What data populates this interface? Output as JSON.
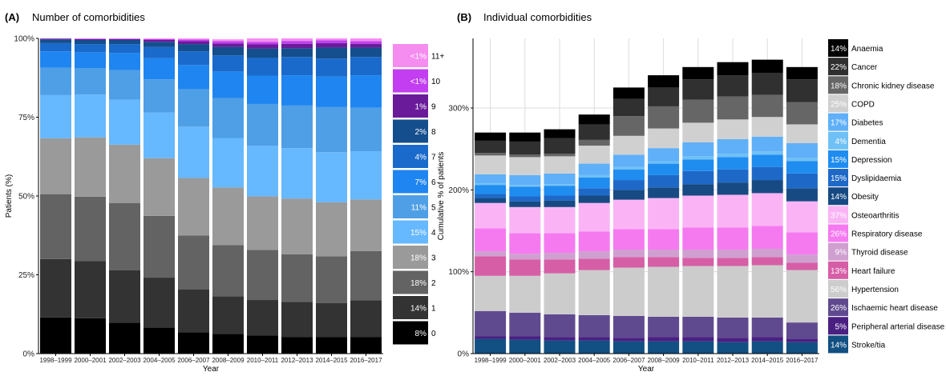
{
  "panels": [
    {
      "tag": "(A)",
      "title": "Number of comorbidities"
    },
    {
      "tag": "(B)",
      "title": "Individual comorbidities"
    }
  ],
  "chart_data": [
    {
      "type": "bar",
      "stacked": true,
      "title": "Number of comorbidities",
      "xlabel": "Year",
      "ylabel": "Patients (%)",
      "ylim": [
        0,
        100
      ],
      "yticks": [
        "0%",
        "25%",
        "50%",
        "75%",
        "100%"
      ],
      "grid": false,
      "legend_position": "right",
      "categories": [
        "1998–1999",
        "2000–2001",
        "2002–2003",
        "2004–2005",
        "2006–2007",
        "2008–2009",
        "2010–2011",
        "2012–2013",
        "2014–2015",
        "2016–2017"
      ],
      "series": [
        {
          "name": "0",
          "legend_value": "8%",
          "color": "#000000",
          "values": [
            11.5,
            11.2,
            9.8,
            8.3,
            6.8,
            6.3,
            5.7,
            5.2,
            5.2,
            5.2
          ]
        },
        {
          "name": "1",
          "legend_value": "14%",
          "color": "#333333",
          "values": [
            18.5,
            18.2,
            16.6,
            15.8,
            13.6,
            11.9,
            11.3,
            11.2,
            10.8,
            11.7
          ]
        },
        {
          "name": "2",
          "legend_value": "18%",
          "color": "#636363",
          "values": [
            20.6,
            20.4,
            21.4,
            19.6,
            17.1,
            16.2,
            15.9,
            15.1,
            14.9,
            15.6
          ]
        },
        {
          "name": "3",
          "legend_value": "18%",
          "color": "#9a9a9a",
          "values": [
            17.7,
            18.8,
            18.5,
            18.3,
            18.2,
            18.3,
            17.0,
            17.7,
            17.1,
            16.4
          ]
        },
        {
          "name": "4",
          "legend_value": "15%",
          "color": "#66b8ff",
          "values": [
            13.7,
            13.6,
            14.3,
            14.5,
            16.3,
            15.7,
            16.0,
            16.0,
            15.9,
            15.3
          ]
        },
        {
          "name": "5",
          "legend_value": "11%",
          "color": "#4f9fe6",
          "values": [
            8.7,
            8.4,
            9.3,
            10.5,
            11.9,
            12.7,
            13.3,
            13.5,
            14.3,
            13.8
          ]
        },
        {
          "name": "6",
          "legend_value": "7%",
          "color": "#1f85f0",
          "values": [
            5.2,
            5.0,
            5.5,
            6.7,
            7.7,
            8.4,
            9.0,
            9.6,
            9.7,
            10.3
          ]
        },
        {
          "name": "7",
          "legend_value": "4%",
          "color": "#1a6acc",
          "values": [
            2.6,
            2.6,
            2.8,
            3.6,
            4.3,
            5.1,
            5.6,
            5.8,
            5.7,
            5.8
          ]
        },
        {
          "name": "8",
          "legend_value": "2%",
          "color": "#144e8c",
          "values": [
            1.2,
            1.3,
            1.3,
            1.6,
            2.3,
            2.7,
            3.0,
            2.8,
            3.5,
            3.0
          ]
        },
        {
          "name": "9",
          "legend_value": "1%",
          "color": "#6a1b9a",
          "values": [
            0.2,
            0.3,
            0.3,
            0.6,
            0.9,
            1.1,
            1.3,
            1.4,
            1.4,
            1.2
          ]
        },
        {
          "name": "10",
          "legend_value": "<1%",
          "color": "#c23ef0",
          "values": [
            0.1,
            0.1,
            0.1,
            0.3,
            0.5,
            0.7,
            0.8,
            0.9,
            0.9,
            0.8
          ]
        },
        {
          "name": "11+",
          "legend_value": "<1%",
          "color": "#f58cf0",
          "values": [
            0.0,
            0.1,
            0.1,
            0.2,
            0.4,
            0.6,
            1.1,
            0.8,
            0.6,
            0.9
          ]
        }
      ]
    },
    {
      "type": "bar",
      "stacked": true,
      "title": "Individual comorbidities",
      "xlabel": "Year",
      "ylabel": "Cumulative % of patients",
      "ylim": [
        0,
        385
      ],
      "yticks": [
        "0%",
        "100%",
        "200%",
        "300%"
      ],
      "grid": true,
      "legend_position": "right",
      "categories": [
        "1998–1999",
        "2000–2001",
        "2002–2003",
        "2004–2005",
        "2006–2007",
        "2008–2009",
        "2010–2011",
        "2012–2013",
        "2014–2015",
        "2016–2017"
      ],
      "series": [
        {
          "name": "Stroke/tia",
          "legend_value": "14%",
          "color": "#124f82",
          "values": [
            18,
            17,
            16,
            16,
            15,
            15,
            15,
            14,
            15,
            14
          ]
        },
        {
          "name": "Peripheral arterial disease",
          "legend_value": "5%",
          "color": "#4a1f82",
          "values": [
            3,
            4,
            4,
            4,
            4,
            5,
            5,
            5,
            5,
            4
          ]
        },
        {
          "name": "Ischaemic heart disease",
          "legend_value": "26%",
          "color": "#604a8f",
          "values": [
            31,
            29,
            28,
            27,
            27,
            25,
            25,
            25,
            24,
            20
          ]
        },
        {
          "name": "Hypertension",
          "legend_value": "56%",
          "color": "#cccccc",
          "values": [
            43,
            45,
            50,
            55,
            59,
            61,
            62,
            63,
            64,
            64
          ]
        },
        {
          "name": "Heart failure",
          "legend_value": "13%",
          "color": "#d65ea6",
          "values": [
            24,
            20,
            17,
            14,
            13,
            12,
            10,
            10,
            10,
            9
          ]
        },
        {
          "name": "Thyroid disease",
          "legend_value": "9%",
          "color": "#cf9fd0",
          "values": [
            6,
            7,
            8,
            9,
            9,
            9,
            10,
            10,
            10,
            10
          ]
        },
        {
          "name": "Respiratory disease",
          "legend_value": "26%",
          "color": "#f57af0",
          "values": [
            28,
            25,
            24,
            24,
            25,
            25,
            27,
            27,
            28,
            27
          ]
        },
        {
          "name": "Osteoarthritis",
          "legend_value": "37%",
          "color": "#fab4f5",
          "values": [
            31,
            32,
            32,
            35,
            36,
            38,
            39,
            40,
            40,
            38
          ]
        },
        {
          "name": "Obesity",
          "legend_value": "14%",
          "color": "#174a83",
          "values": [
            6,
            7,
            8,
            9,
            12,
            13,
            14,
            15,
            16,
            16
          ]
        },
        {
          "name": "Dyslipidaemia",
          "legend_value": "15%",
          "color": "#1e69c8",
          "values": [
            5,
            6,
            6,
            9,
            12,
            15,
            16,
            16,
            16,
            18
          ]
        },
        {
          "name": "Depression",
          "legend_value": "15%",
          "color": "#1f8cf0",
          "values": [
            11,
            12,
            12,
            13,
            13,
            14,
            14,
            15,
            15,
            15
          ]
        },
        {
          "name": "Dementia",
          "legend_value": "4%",
          "color": "#6fc0f5",
          "values": [
            2,
            2,
            2,
            3,
            3,
            3,
            4,
            4,
            4,
            4
          ]
        },
        {
          "name": "Diabetes",
          "legend_value": "17%",
          "color": "#5fb0f8",
          "values": [
            11,
            12,
            13,
            14,
            15,
            16,
            17,
            18,
            18,
            18
          ]
        },
        {
          "name": "COPD",
          "legend_value": "25%",
          "color": "#d0d0d0",
          "values": [
            23,
            22,
            21,
            22,
            23,
            24,
            24,
            24,
            24,
            23
          ]
        },
        {
          "name": "Chronic kidney disease",
          "legend_value": "18%",
          "color": "#666666",
          "values": [
            3,
            3,
            3,
            7,
            24,
            27,
            28,
            28,
            27,
            27
          ]
        },
        {
          "name": "Cancer",
          "legend_value": "22%",
          "color": "#303030",
          "values": [
            15,
            16,
            19,
            19,
            21,
            23,
            25,
            26,
            27,
            28
          ]
        },
        {
          "name": "Anaemia",
          "legend_value": "14%",
          "color": "#000000",
          "values": [
            10,
            11,
            11,
            12,
            14,
            15,
            15,
            16,
            16,
            15
          ]
        }
      ]
    }
  ]
}
